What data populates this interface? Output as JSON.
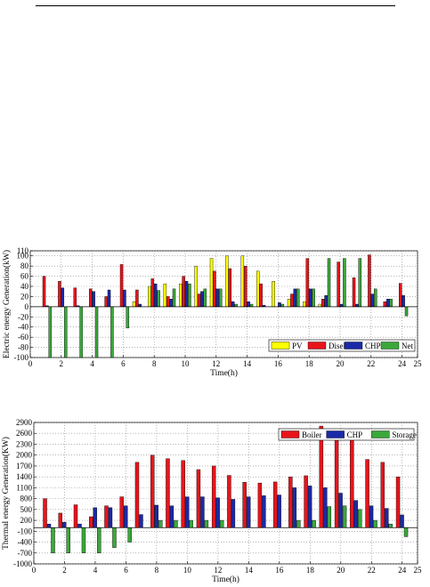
{
  "chart_data": [
    {
      "type": "bar",
      "xlabel": "Time(h)",
      "ylabel": "Electric energy Generation(kW)",
      "ylim": [
        -100,
        110
      ],
      "yticks": [
        -100,
        -80,
        -60,
        -40,
        -20,
        0,
        20,
        40,
        60,
        80,
        100,
        110
      ],
      "xlim": [
        0,
        25
      ],
      "xticks": [
        0,
        2,
        4,
        6,
        8,
        10,
        12,
        14,
        16,
        18,
        20,
        22,
        24,
        25
      ],
      "tick_labels_y": [
        "-100",
        "-80",
        "-60",
        "-40",
        "-20",
        "0",
        "20",
        "40",
        "60",
        "80",
        "100",
        "110"
      ],
      "tick_labels_x": [
        "0",
        "2",
        "4",
        "6",
        "8",
        "10",
        "12",
        "14",
        "16",
        "18",
        "20",
        "22",
        "24",
        "25"
      ],
      "legend_position": "bottom-right",
      "grid": true,
      "x": [
        1,
        2,
        3,
        4,
        5,
        6,
        7,
        8,
        9,
        10,
        11,
        12,
        13,
        14,
        15,
        16,
        17,
        18,
        19,
        20,
        21,
        22,
        23,
        24
      ],
      "series": [
        {
          "name": "PV",
          "color": "#ffff00",
          "values": [
            0,
            0,
            0,
            0,
            0,
            0,
            10,
            40,
            45,
            45,
            80,
            95,
            100,
            100,
            70,
            50,
            15,
            10,
            5,
            0,
            0,
            0,
            0,
            0
          ]
        },
        {
          "name": "Disel",
          "color": "#e8141b",
          "values": [
            60,
            50,
            37,
            35,
            20,
            83,
            33,
            55,
            20,
            60,
            25,
            70,
            75,
            80,
            45,
            0,
            25,
            95,
            15,
            88,
            57,
            102,
            10,
            46
          ]
        },
        {
          "name": "CHP",
          "color": "#1a2aa8",
          "values": [
            2,
            37,
            2,
            30,
            33,
            33,
            5,
            45,
            15,
            50,
            30,
            35,
            10,
            10,
            3,
            8,
            35,
            35,
            22,
            5,
            5,
            25,
            15,
            22
          ]
        },
        {
          "name": "Net",
          "color": "#3aa83a",
          "values": [
            -100,
            -100,
            -100,
            -100,
            -100,
            -42,
            0,
            32,
            35,
            45,
            35,
            35,
            5,
            5,
            0,
            5,
            35,
            35,
            95,
            95,
            95,
            35,
            15,
            -18
          ]
        }
      ]
    },
    {
      "type": "bar",
      "xlabel": "Time(h)",
      "ylabel": "Thermal energy Generation(KW)",
      "ylim": [
        -1000,
        2900
      ],
      "yticks": [
        -1000,
        -700,
        -400,
        -100,
        200,
        500,
        800,
        1100,
        1400,
        1700,
        2000,
        2300,
        2600,
        2900
      ],
      "tick_labels_y": [
        "-1000",
        "-700",
        "-400",
        "-100",
        "200",
        "500",
        "800",
        "1100",
        "1400",
        "1700",
        "2000",
        "2300",
        "2600",
        "2900"
      ],
      "xlim": [
        0,
        25
      ],
      "xticks": [
        0,
        2,
        4,
        6,
        8,
        10,
        12,
        14,
        16,
        18,
        20,
        22,
        24,
        25
      ],
      "tick_labels_x": [
        "0",
        "2",
        "4",
        "6",
        "8",
        "10",
        "12",
        "14",
        "16",
        "18",
        "20",
        "22",
        "24",
        "25"
      ],
      "legend_position": "top-right",
      "grid": true,
      "x": [
        1,
        2,
        3,
        4,
        5,
        6,
        7,
        8,
        9,
        10,
        11,
        12,
        13,
        14,
        15,
        16,
        17,
        18,
        19,
        20,
        21,
        22,
        23,
        24
      ],
      "series": [
        {
          "name": "Boiler",
          "color": "#e8141b",
          "values": [
            800,
            400,
            630,
            300,
            600,
            850,
            1800,
            2000,
            1900,
            1850,
            1600,
            1700,
            1440,
            1250,
            1230,
            1260,
            1400,
            1430,
            2800,
            2650,
            2640,
            1880,
            1800,
            1400
          ]
        },
        {
          "name": "CHP",
          "color": "#1a2aa8",
          "values": [
            100,
            150,
            100,
            550,
            550,
            600,
            360,
            620,
            600,
            850,
            850,
            820,
            780,
            850,
            880,
            900,
            1100,
            1150,
            1100,
            950,
            750,
            600,
            530,
            350
          ]
        },
        {
          "name": "Storage",
          "color": "#3aa83a",
          "values": [
            -700,
            -700,
            -700,
            -700,
            -550,
            -400,
            0,
            200,
            200,
            200,
            200,
            200,
            0,
            0,
            0,
            0,
            200,
            200,
            580,
            600,
            500,
            200,
            100,
            -250
          ]
        }
      ]
    }
  ]
}
